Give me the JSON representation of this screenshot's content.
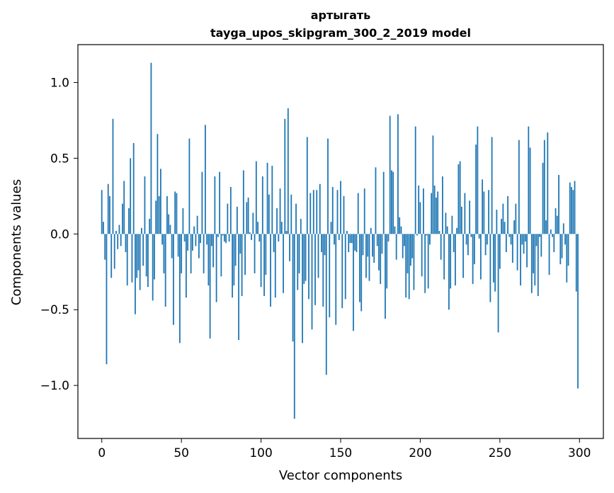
{
  "chart_data": {
    "type": "bar",
    "title_line1": "артыгать",
    "title_line2": "tayga_upos_skipgram_300_2_2019 model",
    "xlabel": "Vector components",
    "ylabel": "Components values",
    "xlim": [
      -15,
      315
    ],
    "ylim": [
      -1.35,
      1.25
    ],
    "x_ticks": [
      0,
      50,
      100,
      150,
      200,
      250,
      300
    ],
    "x_tick_labels": [
      "0",
      "50",
      "100",
      "150",
      "200",
      "250",
      "300"
    ],
    "y_ticks": [
      -1.0,
      -0.5,
      0.0,
      0.5,
      1.0
    ],
    "y_tick_labels": [
      "−1.0",
      "−0.5",
      "0.0",
      "0.5",
      "1.0"
    ],
    "bar_color": "#1f77b4",
    "grid": false,
    "values": [
      0.29,
      0.08,
      -0.17,
      -0.86,
      0.33,
      0.25,
      -0.29,
      0.76,
      -0.23,
      0.02,
      -0.1,
      0.06,
      -0.08,
      0.2,
      0.35,
      -0.12,
      -0.34,
      0.17,
      0.5,
      -0.32,
      0.6,
      -0.53,
      -0.29,
      -0.24,
      -0.37,
      0.04,
      -0.21,
      0.38,
      -0.28,
      -0.35,
      0.1,
      1.13,
      -0.44,
      -0.3,
      0.22,
      0.66,
      0.25,
      0.43,
      -0.07,
      -0.26,
      -0.48,
      0.25,
      0.13,
      0.06,
      -0.16,
      -0.6,
      0.28,
      0.27,
      -0.15,
      -0.72,
      -0.26,
      0.17,
      -0.05,
      -0.42,
      -0.11,
      0.63,
      -0.26,
      -0.11,
      0.05,
      -0.08,
      0.12,
      -0.16,
      -0.06,
      0.41,
      -0.26,
      0.72,
      -0.07,
      -0.34,
      -0.69,
      -0.08,
      -0.22,
      0.38,
      -0.45,
      -0.02,
      0.41,
      -0.28,
      -0.01,
      -0.05,
      -0.06,
      0.2,
      -0.05,
      0.31,
      -0.42,
      -0.34,
      -0.21,
      0.18,
      -0.7,
      -0.13,
      -0.41,
      0.42,
      -0.27,
      0.21,
      0.24,
      0.01,
      -0.04,
      0.14,
      -0.26,
      0.48,
      0.08,
      -0.05,
      -0.35,
      0.38,
      -0.41,
      -0.27,
      0.47,
      0.26,
      -0.48,
      0.45,
      -0.12,
      -0.42,
      0.17,
      -0.05,
      0.3,
      0.08,
      -0.39,
      0.76,
      0.02,
      0.83,
      -0.18,
      0.26,
      -0.71,
      -1.22,
      0.2,
      -0.37,
      -0.26,
      0.1,
      -0.72,
      -0.33,
      -0.31,
      0.64,
      -0.43,
      0.27,
      -0.63,
      0.29,
      -0.47,
      0.29,
      -0.29,
      0.33,
      -0.12,
      -0.48,
      -0.14,
      -0.93,
      0.63,
      -0.55,
      0.08,
      0.31,
      -0.07,
      -0.6,
      0.29,
      -0.04,
      0.35,
      -0.49,
      0.25,
      -0.43,
      0.02,
      -0.12,
      -0.06,
      -0.06,
      -0.64,
      -0.11,
      -0.12,
      0.27,
      -0.45,
      -0.51,
      -0.14,
      0.3,
      -0.29,
      -0.15,
      -0.31,
      0.04,
      -0.15,
      -0.19,
      0.44,
      -0.08,
      -0.24,
      -0.33,
      -0.13,
      0.41,
      -0.56,
      -0.36,
      -0.05,
      0.78,
      0.42,
      0.41,
      0.05,
      -0.17,
      0.79,
      0.11,
      0.05,
      -0.16,
      -0.08,
      -0.42,
      -0.26,
      -0.43,
      -0.21,
      -0.16,
      -0.37,
      0.71,
      -0.01,
      0.32,
      0.21,
      -0.28,
      0.3,
      -0.39,
      -0.01,
      -0.36,
      -0.07,
      0.27,
      0.65,
      0.32,
      0.24,
      0.28,
      0.02,
      -0.17,
      0.38,
      -0.3,
      0.14,
      0.05,
      -0.5,
      -0.36,
      0.12,
      -0.12,
      -0.34,
      0.04,
      0.46,
      0.48,
      0.18,
      -0.29,
      0.27,
      -0.07,
      -0.14,
      0.22,
      -0.02,
      -0.33,
      -0.2,
      0.59,
      0.71,
      -0.03,
      -0.3,
      0.36,
      0.28,
      -0.14,
      -0.07,
      0.29,
      -0.45,
      0.64,
      -0.32,
      -0.38,
      0.16,
      -0.65,
      -0.23,
      0.1,
      0.2,
      0.08,
      -0.12,
      0.25,
      -0.02,
      -0.07,
      -0.19,
      0.09,
      0.2,
      -0.24,
      0.62,
      -0.34,
      -0.07,
      -0.13,
      -0.05,
      -0.22,
      0.71,
      0.57,
      -0.39,
      -0.26,
      -0.34,
      -0.08,
      -0.41,
      -0.02,
      -0.15,
      0.47,
      0.62,
      0.09,
      0.67,
      -0.27,
      0.03,
      -0.02,
      -0.12,
      0.17,
      0.12,
      0.39,
      -0.2,
      -0.16,
      0.07,
      -0.07,
      -0.32,
      -0.21,
      0.34,
      0.31,
      0.29,
      0.35,
      -0.38,
      -1.02
    ]
  }
}
